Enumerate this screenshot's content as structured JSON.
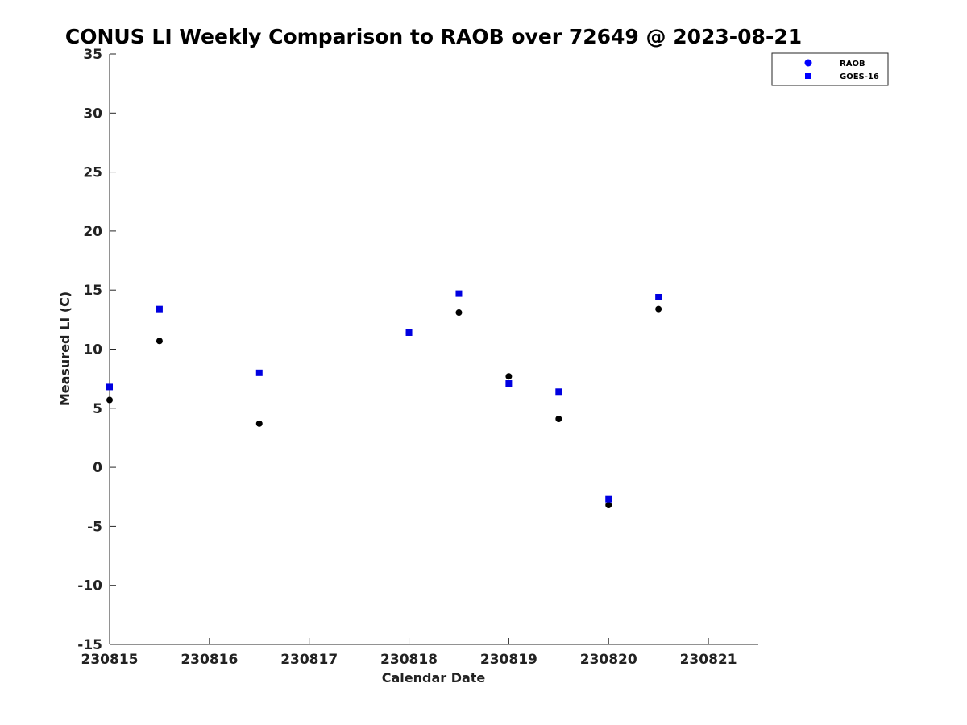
{
  "chart_data": {
    "type": "scatter",
    "title": "CONUS LI Weekly Comparison to RAOB over 72649 @ 2023-08-21",
    "xlabel": "Calendar Date",
    "ylabel": "Measured LI (C)",
    "xlim": [
      230815,
      230821.5
    ],
    "ylim": [
      -15,
      35
    ],
    "xticks": [
      230815,
      230816,
      230817,
      230818,
      230819,
      230820,
      230821
    ],
    "xtick_labels": [
      "230815",
      "230816",
      "230817",
      "230818",
      "230819",
      "230820",
      "230821"
    ],
    "yticks": [
      35,
      30,
      25,
      20,
      15,
      10,
      5,
      0,
      -5,
      -10,
      -15
    ],
    "ytick_labels": [
      "35",
      "30",
      "25",
      "20",
      "15",
      "10",
      "5",
      "0",
      "-5",
      "-10",
      "-15"
    ],
    "grid": false,
    "legend_position": "top-right",
    "series": [
      {
        "name": "RAOB",
        "marker": "circle",
        "color": "#000000",
        "legend_color": "#0000ff",
        "x": [
          230815.0,
          230815.5,
          230816.5,
          230818.0,
          230818.5,
          230819.0,
          230819.5,
          230820.0,
          230820.5
        ],
        "y": [
          5.7,
          10.7,
          3.7,
          11.4,
          13.1,
          7.7,
          4.1,
          -3.2,
          13.4
        ]
      },
      {
        "name": "GOES-16",
        "marker": "square",
        "color": "#0000e0",
        "legend_color": "#0000ff",
        "x": [
          230815.0,
          230815.5,
          230816.5,
          230818.0,
          230818.5,
          230819.0,
          230819.5,
          230820.0,
          230820.5
        ],
        "y": [
          6.8,
          13.4,
          8.0,
          11.4,
          14.7,
          7.1,
          6.4,
          -2.7,
          14.4
        ]
      }
    ]
  }
}
